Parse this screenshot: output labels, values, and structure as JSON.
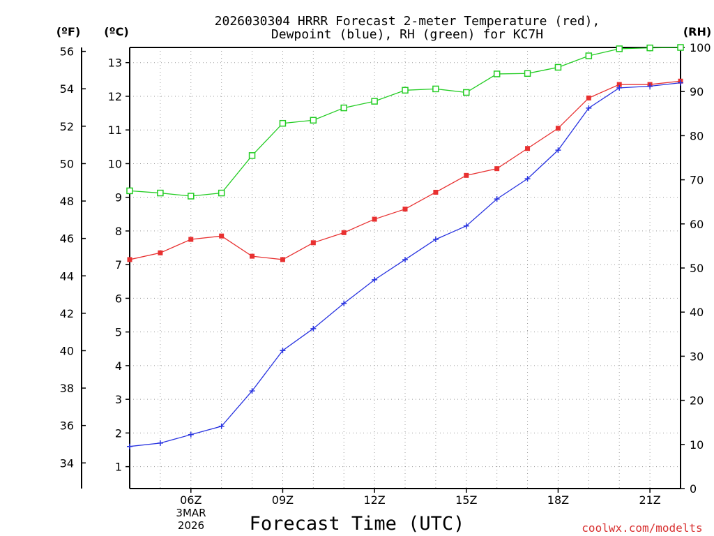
{
  "chart_data": {
    "type": "line",
    "title_line1": "2026030304 HRRR Forecast 2-meter Temperature (red),",
    "title_line2": "Dewpoint (blue), RH (green) for KC7H",
    "xlabel": "Forecast Time (UTC)",
    "credit": "coolwx.com/modelts",
    "date_month": "3MAR",
    "date_year": "2026",
    "unit_f": "(ºF)",
    "unit_c": "(ºC)",
    "unit_rh": "(RH)",
    "x": [
      4,
      5,
      6,
      7,
      8,
      9,
      10,
      11,
      12,
      13,
      14,
      15,
      16,
      17,
      18,
      19,
      20,
      21,
      22
    ],
    "xlim": [
      4,
      22
    ],
    "x_ticks": [
      6,
      9,
      12,
      15,
      18,
      21
    ],
    "x_tick_labels": [
      "06Z",
      "09Z",
      "12Z",
      "15Z",
      "18Z",
      "21Z"
    ],
    "ylim_c": [
      0.35,
      13.45
    ],
    "yticks_c": [
      1,
      2,
      3,
      4,
      5,
      6,
      7,
      8,
      9,
      10,
      11,
      12,
      13
    ],
    "yticks_f": [
      34,
      36,
      38,
      40,
      42,
      44,
      46,
      48,
      50,
      52,
      54,
      56
    ],
    "ylim_rh": [
      0,
      100
    ],
    "yticks_rh": [
      0,
      10,
      20,
      30,
      40,
      50,
      60,
      70,
      80,
      90,
      100
    ],
    "series": [
      {
        "name": "2-meter Temperature",
        "axis": "C",
        "color": "#e83030",
        "marker": "filled-square",
        "values": [
          7.15,
          7.35,
          7.75,
          7.85,
          7.25,
          7.15,
          7.65,
          7.95,
          8.35,
          8.65,
          9.15,
          9.65,
          9.85,
          10.45,
          11.05,
          11.95,
          12.35,
          12.35,
          12.45
        ]
      },
      {
        "name": "Dewpoint",
        "axis": "C",
        "color": "#2833e0",
        "marker": "plus",
        "values": [
          1.6,
          1.7,
          1.95,
          2.2,
          3.25,
          4.45,
          5.1,
          5.85,
          6.55,
          7.15,
          7.75,
          8.15,
          8.95,
          9.55,
          10.4,
          11.65,
          12.25,
          12.3,
          12.4
        ]
      },
      {
        "name": "RH",
        "axis": "RH",
        "color": "#22cc22",
        "marker": "open-square",
        "values": [
          67.5,
          67.0,
          66.3,
          67.0,
          75.5,
          82.8,
          83.5,
          86.3,
          87.8,
          90.3,
          90.6,
          89.8,
          94.0,
          94.1,
          95.5,
          98.1,
          99.7,
          99.9,
          100.0
        ]
      }
    ],
    "grid": true
  }
}
